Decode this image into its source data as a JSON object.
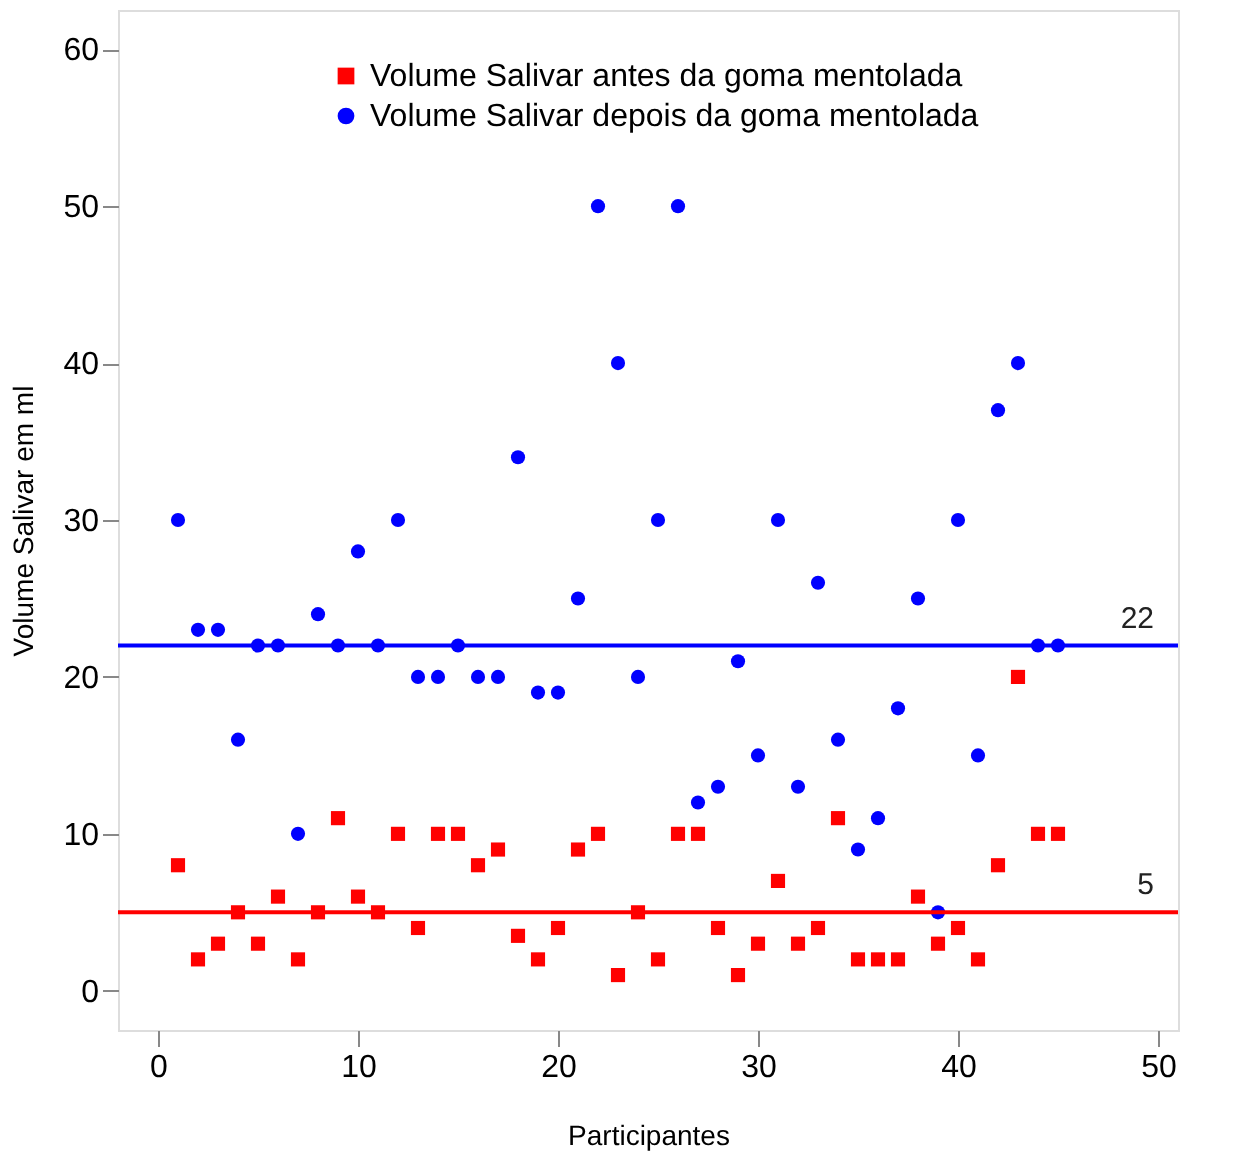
{
  "chart_data": {
    "type": "scatter",
    "xlabel": "Participantes",
    "ylabel": "Volume Salivar em ml",
    "x": [
      1,
      2,
      3,
      4,
      5,
      6,
      7,
      8,
      9,
      10,
      11,
      12,
      13,
      14,
      15,
      16,
      17,
      18,
      19,
      20,
      21,
      22,
      23,
      24,
      25,
      26,
      27,
      28,
      29,
      30,
      31,
      32,
      33,
      34,
      35,
      36,
      37,
      38,
      39,
      40,
      41,
      42,
      43,
      44,
      45
    ],
    "series": [
      {
        "name": "Volume Salivar antes da goma mentolada",
        "color": "#ff0000",
        "marker": "square",
        "values": [
          8,
          2,
          3,
          5,
          3,
          6,
          2,
          5,
          11,
          6,
          5,
          10,
          4,
          10,
          10,
          8,
          9,
          3.5,
          2,
          4,
          9,
          10,
          1,
          5,
          2,
          10,
          10,
          4,
          1,
          3,
          7,
          3,
          4,
          11,
          2,
          2,
          2,
          6,
          3,
          4,
          2,
          8,
          20,
          10,
          10
        ]
      },
      {
        "name": "Volume Salivar depois da goma mentolada",
        "color": "#0000ff",
        "marker": "circle",
        "values": [
          30,
          23,
          23,
          16,
          22,
          22,
          10,
          24,
          22,
          28,
          22,
          30,
          20,
          20,
          22,
          20,
          20,
          34,
          19,
          19,
          25,
          50,
          40,
          20,
          30,
          50,
          12,
          13,
          21,
          15,
          30,
          13,
          26,
          16,
          9,
          11,
          18,
          25,
          5,
          30,
          15,
          37,
          40,
          22,
          22
        ]
      }
    ],
    "ref_lines": [
      {
        "axis": "y",
        "value": 22,
        "label": "22",
        "color": "#0000ff"
      },
      {
        "axis": "y",
        "value": 5,
        "label": "5",
        "color": "#ff0000"
      }
    ],
    "xlim": [
      -2,
      51
    ],
    "ylim": [
      -2.5,
      62.5
    ],
    "xticks": [
      0,
      10,
      20,
      30,
      40,
      50
    ],
    "yticks": [
      0,
      10,
      20,
      30,
      40,
      50,
      60
    ],
    "grid": false,
    "legend": "top"
  }
}
